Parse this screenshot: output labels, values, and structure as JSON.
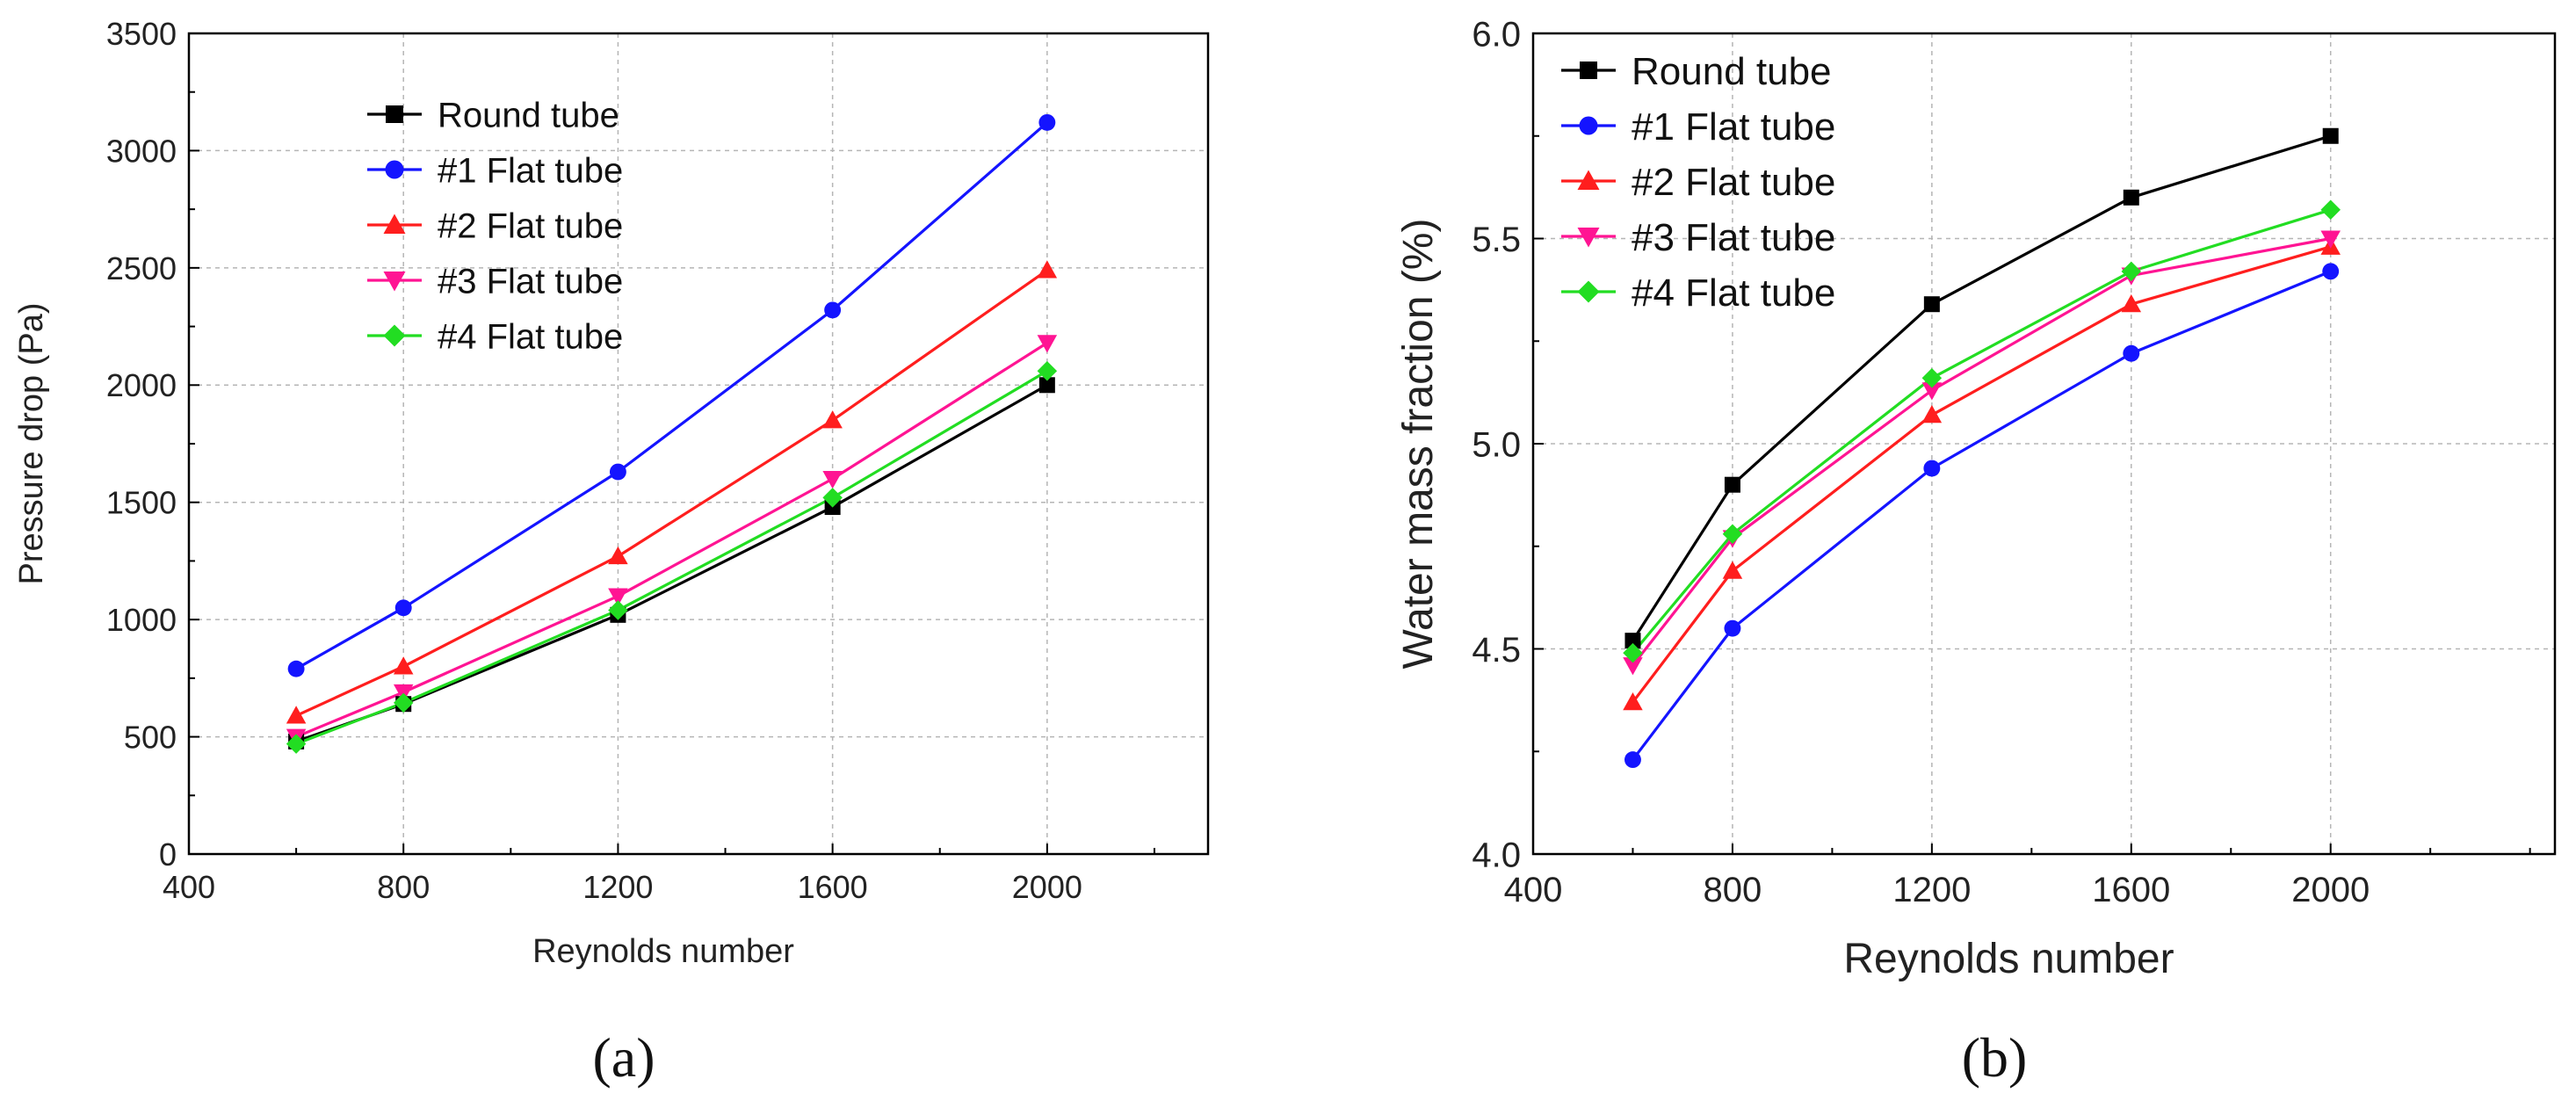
{
  "series_style": [
    {
      "color": "#000000",
      "marker": "square"
    },
    {
      "color": "#1414ff",
      "marker": "circle"
    },
    {
      "color": "#ff1e1e",
      "marker": "triangle-up"
    },
    {
      "color": "#ff1493",
      "marker": "triangle-down"
    },
    {
      "color": "#22dd22",
      "marker": "diamond"
    }
  ],
  "chart_data": [
    {
      "type": "line",
      "panel_label": "(a)",
      "title": "",
      "xlabel": "Reynolds number",
      "ylabel": "Pressure drop (Pa)",
      "xlim": [
        400,
        2300
      ],
      "ylim": [
        0,
        3500
      ],
      "xticks": [
        400,
        800,
        1200,
        1600,
        2000
      ],
      "yticks": [
        0,
        500,
        1000,
        1500,
        2000,
        2500,
        3000,
        3500
      ],
      "grid": true,
      "legend_position": "top-left",
      "x": [
        600,
        800,
        1200,
        1600,
        2000
      ],
      "series": [
        {
          "name": "Round tube",
          "values": [
            480,
            640,
            1020,
            1480,
            2000
          ]
        },
        {
          "name": "#1 Flat tube",
          "values": [
            790,
            1050,
            1630,
            2320,
            3120
          ]
        },
        {
          "name": "#2 Flat tube",
          "values": [
            590,
            800,
            1270,
            1850,
            2490
          ]
        },
        {
          "name": "#3 Flat tube",
          "values": [
            500,
            690,
            1100,
            1600,
            2180
          ]
        },
        {
          "name": "#4 Flat tube",
          "values": [
            470,
            645,
            1040,
            1520,
            2060
          ]
        }
      ]
    },
    {
      "type": "line",
      "panel_label": "(b)",
      "title": "",
      "xlabel": "Reynolds number",
      "ylabel": "Water mass fraction (%)",
      "xlim": [
        400,
        2450
      ],
      "ylim": [
        4.0,
        6.0
      ],
      "xticks": [
        400,
        800,
        1200,
        1600,
        2000
      ],
      "yticks": [
        4.0,
        4.5,
        5.0,
        5.5,
        6.0
      ],
      "ytick_format": 1,
      "grid": true,
      "legend_position": "top-left",
      "x": [
        600,
        800,
        1200,
        1600,
        2000
      ],
      "series": [
        {
          "name": "Round tube",
          "values": [
            4.52,
            4.9,
            5.34,
            5.6,
            5.75
          ]
        },
        {
          "name": "#1 Flat tube",
          "values": [
            4.23,
            4.55,
            4.94,
            5.22,
            5.42
          ]
        },
        {
          "name": "#2 Flat tube",
          "values": [
            4.37,
            4.69,
            5.07,
            5.34,
            5.48
          ]
        },
        {
          "name": "#3 Flat tube",
          "values": [
            4.46,
            4.77,
            5.13,
            5.41,
            5.5
          ]
        },
        {
          "name": "#4 Flat tube",
          "values": [
            4.49,
            4.78,
            5.16,
            5.42,
            5.57
          ]
        }
      ]
    }
  ]
}
